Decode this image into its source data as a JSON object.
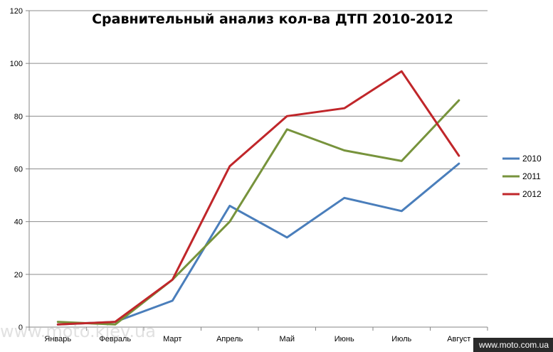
{
  "chart_data": {
    "type": "line",
    "title": "Сравнительный анализ кол-ва ДТП 2010-2012",
    "categories": [
      "Январь",
      "Февраль",
      "Март",
      "Апрель",
      "Май",
      "Июнь",
      "Июль",
      "Август"
    ],
    "ylim": [
      0,
      120
    ],
    "yticks": [
      0,
      20,
      40,
      60,
      80,
      100,
      120
    ],
    "grid": true,
    "legend_position": "right",
    "series": [
      {
        "name": "2010",
        "color": "#4a7ebb",
        "values": [
          1,
          2,
          10,
          46,
          34,
          49,
          44,
          62
        ]
      },
      {
        "name": "2011",
        "color": "#77933c",
        "values": [
          2,
          1,
          18,
          40,
          75,
          67,
          63,
          86
        ]
      },
      {
        "name": "2012",
        "color": "#c0262a",
        "values": [
          1,
          2,
          18,
          61,
          80,
          83,
          97,
          65
        ]
      }
    ]
  },
  "watermark": "www.moto.kiev.ua",
  "footer": "www.moto.com.ua"
}
